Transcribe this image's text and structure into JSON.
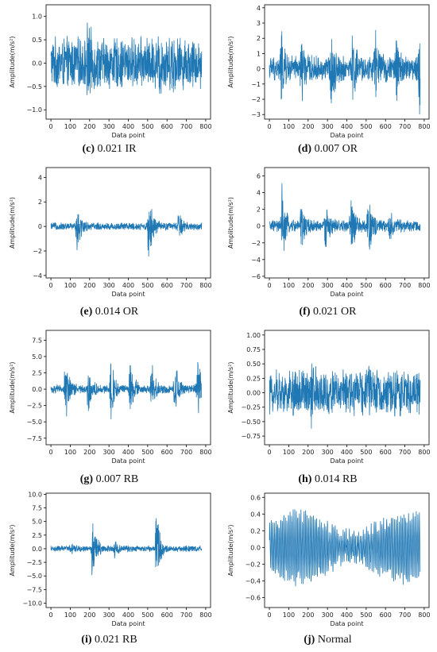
{
  "chart_data": [
    {
      "type": "line",
      "letter": "c",
      "label": "0.021 IR",
      "xlabel": "Data point",
      "ylabel": "Amplitude(m/s²)",
      "xlim": [
        -25,
        825
      ],
      "ylim": [
        -1.2,
        1.25
      ],
      "xticks": [
        0,
        100,
        200,
        300,
        400,
        500,
        600,
        700,
        800
      ],
      "yticks": [
        -1.0,
        -0.5,
        0.0,
        0.5,
        1.0
      ],
      "ytick_labels": [
        "−1.0",
        "−0.5",
        "0.0",
        "0.5",
        "1.0"
      ],
      "series": [
        {
          "color": "#1f77b4",
          "amp": 0.6,
          "bursts": [
            [
              190,
              0.55
            ],
            [
              560,
              0.35
            ],
            [
              625,
              0.3
            ]
          ],
          "n": 780,
          "x": [],
          "y": []
        }
      ]
    },
    {
      "type": "line",
      "letter": "d",
      "label": "0.007 OR",
      "xlabel": "Data point",
      "ylabel": "Amplitude(m/s²)",
      "xlim": [
        -25,
        825
      ],
      "ylim": [
        -3.3,
        4.2
      ],
      "xticks": [
        0,
        100,
        200,
        300,
        400,
        500,
        600,
        700,
        800
      ],
      "yticks": [
        -3,
        -2,
        -1,
        0,
        1,
        2,
        3,
        4
      ],
      "ytick_labels": [
        "−3",
        "−2",
        "−1",
        "0",
        "1",
        "2",
        "3",
        "4"
      ],
      "series": [
        {
          "color": "#1f77b4",
          "amp": 0.9,
          "bursts": [
            [
              60,
              2.2
            ],
            [
              165,
              2.0
            ],
            [
              320,
              2.7
            ],
            [
              430,
              2.3
            ],
            [
              545,
              2.6
            ],
            [
              655,
              2.2
            ],
            [
              775,
              3.1
            ]
          ],
          "n": 780,
          "x": [],
          "y": []
        }
      ]
    },
    {
      "type": "line",
      "letter": "e",
      "label": "0.014 OR",
      "xlabel": "Data point",
      "ylabel": "Amplitude(m/s²)",
      "xlim": [
        -25,
        825
      ],
      "ylim": [
        -4.2,
        4.8
      ],
      "xticks": [
        0,
        100,
        200,
        300,
        400,
        500,
        600,
        700,
        800
      ],
      "yticks": [
        -4,
        -2,
        0,
        2,
        4
      ],
      "ytick_labels": [
        "−4",
        "−2",
        "0",
        "2",
        "4"
      ],
      "series": [
        {
          "color": "#1f77b4",
          "amp": 0.35,
          "bursts": [
            [
              135,
              2.4
            ],
            [
              505,
              3.8
            ],
            [
              660,
              1.3
            ]
          ],
          "n": 780,
          "x": [],
          "y": []
        }
      ]
    },
    {
      "type": "line",
      "letter": "f",
      "label": "0.021 OR",
      "xlabel": "Data point",
      "ylabel": "Amplitude(m/s²)",
      "xlim": [
        -25,
        825
      ],
      "ylim": [
        -6.2,
        7.0
      ],
      "xticks": [
        0,
        100,
        200,
        300,
        400,
        500,
        600,
        700,
        800
      ],
      "yticks": [
        -6,
        -4,
        -2,
        0,
        2,
        4,
        6
      ],
      "ytick_labels": [
        "−6",
        "−4",
        "−2",
        "0",
        "2",
        "4",
        "6"
      ],
      "series": [
        {
          "color": "#1f77b4",
          "amp": 0.8,
          "bursts": [
            [
              65,
              5.0
            ],
            [
              165,
              3.5
            ],
            [
              290,
              3.0
            ],
            [
              420,
              4.5
            ],
            [
              510,
              5.5
            ],
            [
              620,
              2.5
            ]
          ],
          "n": 780,
          "x": [],
          "y": []
        }
      ]
    },
    {
      "type": "line",
      "letter": "g",
      "label": "0.007 RB",
      "xlabel": "Data point",
      "ylabel": "Amplitude(m/s²)",
      "xlim": [
        -25,
        825
      ],
      "ylim": [
        -8.5,
        9.0
      ],
      "xticks": [
        0,
        100,
        200,
        300,
        400,
        500,
        600,
        700,
        800
      ],
      "yticks": [
        -7.5,
        -5.0,
        -2.5,
        0.0,
        2.5,
        5.0,
        7.5
      ],
      "ytick_labels": [
        "−7.5",
        "−5.0",
        "−2.5",
        "0.0",
        "2.5",
        "5.0",
        "7.5"
      ],
      "series": [
        {
          "color": "#1f77b4",
          "amp": 0.7,
          "bursts": [
            [
              75,
              6.5
            ],
            [
              190,
              5.0
            ],
            [
              310,
              6.0
            ],
            [
              410,
              6.0
            ],
            [
              520,
              5.0
            ],
            [
              640,
              5.5
            ],
            [
              755,
              7.0
            ]
          ],
          "n": 780,
          "x": [],
          "y": []
        }
      ]
    },
    {
      "type": "line",
      "letter": "h",
      "label": "0.014 RB",
      "xlabel": "Data point",
      "ylabel": "Amplitude(m/s²)",
      "xlim": [
        -25,
        825
      ],
      "ylim": [
        -0.9,
        1.08
      ],
      "xticks": [
        0,
        100,
        200,
        300,
        400,
        500,
        600,
        700,
        800
      ],
      "yticks": [
        -0.75,
        -0.5,
        -0.25,
        0.0,
        0.25,
        0.5,
        0.75,
        1.0
      ],
      "ytick_labels": [
        "−0.75",
        "−0.50",
        "−0.25",
        "0.00",
        "0.25",
        "0.50",
        "0.75",
        "1.00"
      ],
      "series": [
        {
          "color": "#1f77b4",
          "amp": 0.42,
          "bursts": [
            [
              120,
              0.25
            ],
            [
              215,
              0.45
            ],
            [
              500,
              0.2
            ],
            [
              640,
              0.2
            ]
          ],
          "n": 780,
          "x": [],
          "y": []
        }
      ]
    },
    {
      "type": "line",
      "letter": "i",
      "label": "0.021 RB",
      "xlabel": "Data point",
      "ylabel": "Amplitude(m/s²)",
      "xlim": [
        -25,
        825
      ],
      "ylim": [
        -10.8,
        10.2
      ],
      "xticks": [
        0,
        100,
        200,
        300,
        400,
        500,
        600,
        700,
        800
      ],
      "yticks": [
        -10.0,
        -7.5,
        -5.0,
        -2.5,
        0.0,
        2.5,
        5.0,
        7.5,
        10.0
      ],
      "ytick_labels": [
        "−10.0",
        "−7.5",
        "−5.0",
        "−2.5",
        "0.0",
        "2.5",
        "5.0",
        "7.5",
        "10.0"
      ],
      "series": [
        {
          "color": "#1f77b4",
          "amp": 0.6,
          "bursts": [
            [
              215,
              8.5
            ],
            [
              545,
              8.3
            ],
            [
              330,
              1.5
            ],
            [
              100,
              1.0
            ]
          ],
          "n": 780,
          "x": [],
          "y": []
        }
      ]
    },
    {
      "type": "line",
      "letter": "j",
      "label": "Normal",
      "xlabel": "Data point",
      "ylabel": "Amplitude(m/s²)",
      "xlim": [
        -25,
        825
      ],
      "ylim": [
        -0.72,
        0.65
      ],
      "xticks": [
        0,
        100,
        200,
        300,
        400,
        500,
        600,
        700,
        800
      ],
      "yticks": [
        -0.6,
        -0.4,
        -0.2,
        0.0,
        0.2,
        0.4,
        0.6
      ],
      "ytick_labels": [
        "−0.6",
        "−0.4",
        "−0.2",
        "0.0",
        "0.2",
        "0.4",
        "0.6"
      ],
      "series": [
        {
          "color": "#1f77b4",
          "amp": 0.45,
          "bursts": [],
          "n": 780,
          "x": [],
          "y": []
        }
      ]
    }
  ]
}
